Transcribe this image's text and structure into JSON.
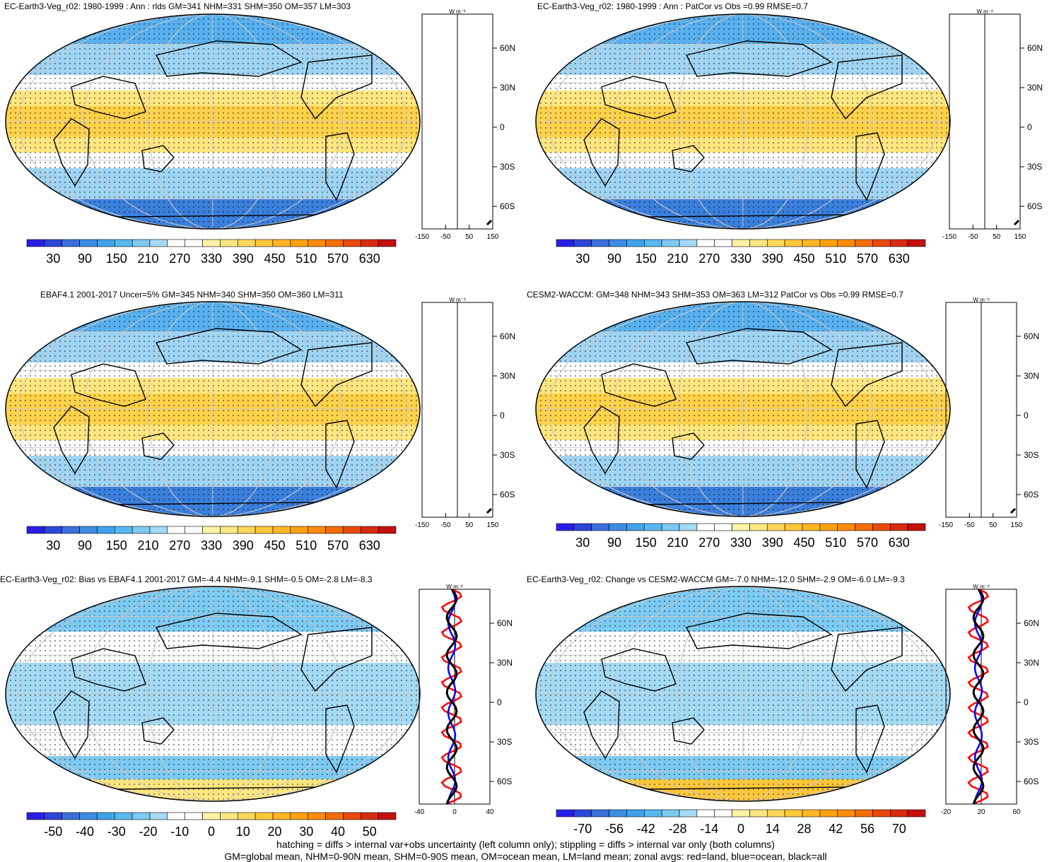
{
  "panels": [
    {
      "title": "EC-Earth3-Veg_r02: 1980-1999 : Ann : rlds GM=341 NHM=331 SHM=350 OM=357 LM=303",
      "type": "abs",
      "zonal_ticks": [
        "-150",
        "-50",
        "50",
        "150"
      ],
      "zonal_unit": "W m⁻²"
    },
    {
      "title": "EC-Earth3-Veg_r02: 1980-1999 : Ann : PatCor vs Obs =0.99 RMSE=0.7",
      "type": "abs",
      "zonal_ticks": [
        "-150",
        "-50",
        "50",
        "150"
      ],
      "zonal_unit": "W m⁻²"
    },
    {
      "title": "EBAF4.1 2001-2017 Uncer=5% GM=345 NHM=340 SHM=350 OM=360 LM=311",
      "type": "abs",
      "zonal_ticks": [
        "-150",
        "-50",
        "50",
        "150"
      ],
      "zonal_unit": "W m⁻²"
    },
    {
      "title": "CESM2-WACCM: GM=348 NHM=343 SHM=353 OM=363 LM=312 PatCor vs Obs =0.99 RMSE=0.7",
      "type": "abs",
      "zonal_ticks": [
        "-150",
        "-50",
        "50",
        "150"
      ],
      "zonal_unit": "W m⁻²"
    },
    {
      "title": "EC-Earth3-Veg_r02: Bias vs EBAF4.1 2001-2017 GM=-4.4 NHM=-9.1 SHM=-0.5 OM=-2.8 LM=-8.3",
      "type": "bias",
      "zonal_ticks": [
        "-40",
        "0",
        "40"
      ],
      "zonal_unit": "W m⁻²"
    },
    {
      "title": "EC-Earth3-Veg_r02: Change vs CESM2-WACCM GM=-7.0 NHM=-12.0 SHM=-2.9 OM=-6.0 LM=-9.3",
      "type": "change",
      "zonal_ticks": [
        "-20",
        "20",
        "60"
      ],
      "zonal_unit": "W m⁻²"
    }
  ],
  "lat_labels": [
    "60N",
    "30N",
    "0",
    "30S",
    "60S"
  ],
  "colorbars": {
    "abs": {
      "labels": [
        "30",
        "90",
        "150",
        "210",
        "270",
        "330",
        "390",
        "450",
        "510",
        "570",
        "630"
      ],
      "colors": [
        "#2a1ee6",
        "#2b47d9",
        "#3a6fdc",
        "#3d8de3",
        "#3ea4ec",
        "#58b9f0",
        "#7dcaf2",
        "#a4daf4",
        "#ffffff",
        "#ffffff",
        "#fff3a8",
        "#ffe680",
        "#ffd75a",
        "#ffc73a",
        "#ffb622",
        "#ffa10f",
        "#ff8b08",
        "#f46d06",
        "#e84a0a",
        "#d92a10",
        "#c4100e"
      ]
    },
    "bias": {
      "labels": [
        "-50",
        "-40",
        "-30",
        "-20",
        "-10",
        "0",
        "10",
        "20",
        "30",
        "40",
        "50"
      ],
      "colors": [
        "#2a1ee6",
        "#2b47d9",
        "#3a6fdc",
        "#3d8de3",
        "#3ea4ec",
        "#58b9f0",
        "#7dcaf2",
        "#a4daf4",
        "#ffffff",
        "#ffffff",
        "#fff3a8",
        "#ffe680",
        "#ffd75a",
        "#ffc73a",
        "#ffb622",
        "#ffa10f",
        "#ff8b08",
        "#f46d06",
        "#e84a0a",
        "#d92a10",
        "#c4100e"
      ]
    },
    "change": {
      "labels": [
        "-70",
        "-56",
        "-42",
        "-28",
        "-14",
        "0",
        "14",
        "28",
        "42",
        "56",
        "70"
      ],
      "colors": [
        "#2a1ee6",
        "#2b47d9",
        "#3a6fdc",
        "#3d8de3",
        "#3ea4ec",
        "#58b9f0",
        "#7dcaf2",
        "#a4daf4",
        "#ffffff",
        "#ffffff",
        "#fff3a8",
        "#ffe680",
        "#ffd75a",
        "#ffc73a",
        "#ffb622",
        "#ffa10f",
        "#ff8b08",
        "#f46d06",
        "#e84a0a",
        "#d92a10",
        "#c4100e"
      ]
    }
  },
  "footer": {
    "line1": "hatching = diffs > internal var+obs uncertainty (left column only); stippling = diffs > internal var only (both columns)",
    "line2": "GM=global mean, NHM=0-90N mean, SHM=0-90S mean, OM=ocean mean, LM=land mean; zonal avgs: red=land, blue=ocean, black=all"
  }
}
